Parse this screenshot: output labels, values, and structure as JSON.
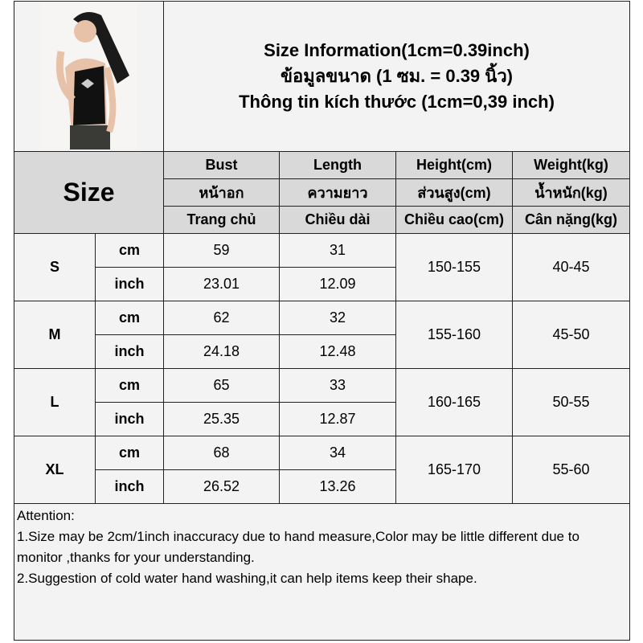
{
  "title": {
    "line1": "Size Information(1cm=0.39inch)",
    "line2": "ข้อมูลขนาด (1 ซม. = 0.39 นิ้ว)",
    "line3": "Thông tin kích thước (1cm=0,39 inch)"
  },
  "header": {
    "size_label": "Size",
    "columns": [
      {
        "en": "Bust",
        "th": "หน้าอก",
        "vi": "Trang chủ"
      },
      {
        "en": "Length",
        "th": "ความยาว",
        "vi": "Chiều dài"
      },
      {
        "en": "Height(cm)",
        "th": "ส่วนสูง(cm)",
        "vi": "Chiều cao(cm)"
      },
      {
        "en": "Weight(kg)",
        "th": "น้ำหนัก(kg)",
        "vi": "Cân nặng(kg)"
      }
    ]
  },
  "rows": [
    {
      "size": "S",
      "cm_label": "cm",
      "inch_label": "inch",
      "bust_cm": "59",
      "length_cm": "31",
      "bust_inch": "23.01",
      "length_inch": "12.09",
      "height": "150-155",
      "weight": "40-45"
    },
    {
      "size": "M",
      "cm_label": "cm",
      "inch_label": "inch",
      "bust_cm": "62",
      "length_cm": "32",
      "bust_inch": "24.18",
      "length_inch": "12.48",
      "height": "155-160",
      "weight": "45-50"
    },
    {
      "size": "L",
      "cm_label": "cm",
      "inch_label": "inch",
      "bust_cm": "65",
      "length_cm": "33",
      "bust_inch": "25.35",
      "length_inch": "12.87",
      "height": "160-165",
      "weight": "50-55"
    },
    {
      "size": "XL",
      "cm_label": "cm",
      "inch_label": "inch",
      "bust_cm": "68",
      "length_cm": "34",
      "bust_inch": "26.52",
      "length_inch": "13.26",
      "height": "165-170",
      "weight": "55-60"
    }
  ],
  "attention": {
    "heading": "Attention:",
    "note1": "1.Size may be 2cm/1inch inaccuracy due to hand measure,Color may be little different due to monitor ,thanks for your understanding.",
    "note2": "2.Suggestion of cold water hand washing,it can help items keep their shape."
  }
}
